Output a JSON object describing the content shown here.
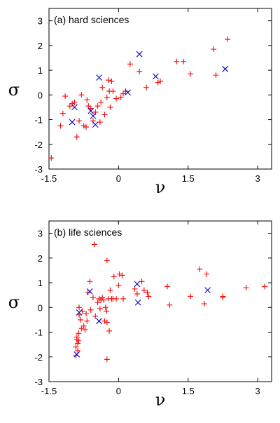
{
  "chart_data": [
    {
      "type": "scatter",
      "title": "(a) hard sciences",
      "xlabel": "ν",
      "ylabel": "σ",
      "xlim": [
        -1.5,
        3.3
      ],
      "ylim": [
        -3,
        3.5
      ],
      "xticks": [
        -1.5,
        0,
        1.5,
        3
      ],
      "xtick_labels": [
        "-1.5",
        "0",
        "1.5",
        "3"
      ],
      "yticks": [
        -3,
        -2,
        -1,
        0,
        1,
        2,
        3
      ],
      "ytick_labels": [
        "-3",
        "-2",
        "-1",
        "0",
        "1",
        "2",
        "3"
      ],
      "grid": false,
      "series": [
        {
          "marker": "plus",
          "color": "#ff0000",
          "points": [
            [
              -1.45,
              -2.55
            ],
            [
              -1.25,
              -1.25
            ],
            [
              -1.2,
              -0.75
            ],
            [
              -1.15,
              -0.05
            ],
            [
              -1.05,
              -0.45
            ],
            [
              -1.0,
              -0.35
            ],
            [
              -0.95,
              -0.3
            ],
            [
              -0.9,
              -1.7
            ],
            [
              -0.85,
              -1.05
            ],
            [
              -0.8,
              0.0
            ],
            [
              -0.75,
              -1.25
            ],
            [
              -0.7,
              -1.3
            ],
            [
              -0.68,
              -0.2
            ],
            [
              -0.65,
              -0.45
            ],
            [
              -0.6,
              -0.55
            ],
            [
              -0.55,
              -1.05
            ],
            [
              -0.5,
              -0.7
            ],
            [
              -0.45,
              -0.45
            ],
            [
              -0.4,
              -1.1
            ],
            [
              -0.38,
              -0.3
            ],
            [
              -0.35,
              0.3
            ],
            [
              -0.3,
              -0.8
            ],
            [
              -0.25,
              -0.1
            ],
            [
              -0.22,
              0.6
            ],
            [
              -0.2,
              0.15
            ],
            [
              -0.18,
              -0.5
            ],
            [
              -0.15,
              0.55
            ],
            [
              -0.12,
              0.15
            ],
            [
              -0.05,
              -0.15
            ],
            [
              0.05,
              -0.1
            ],
            [
              0.1,
              0.05
            ],
            [
              0.15,
              0.15
            ],
            [
              0.25,
              1.25
            ],
            [
              0.45,
              0.95
            ],
            [
              0.6,
              0.3
            ],
            [
              0.85,
              0.5
            ],
            [
              0.9,
              0.55
            ],
            [
              1.25,
              1.35
            ],
            [
              1.4,
              1.35
            ],
            [
              1.55,
              0.85
            ],
            [
              2.05,
              1.85
            ],
            [
              2.1,
              0.8
            ],
            [
              2.35,
              2.25
            ]
          ]
        },
        {
          "marker": "cross",
          "color": "#0000cc",
          "points": [
            [
              -1.0,
              -1.1
            ],
            [
              -0.95,
              -0.5
            ],
            [
              -0.6,
              -0.65
            ],
            [
              -0.55,
              -0.85
            ],
            [
              -0.5,
              -1.2
            ],
            [
              -0.42,
              0.7
            ],
            [
              0.2,
              0.1
            ],
            [
              0.45,
              1.65
            ],
            [
              0.8,
              0.75
            ],
            [
              2.3,
              1.05
            ]
          ]
        }
      ]
    },
    {
      "type": "scatter",
      "title": "(b) life sciences",
      "xlabel": "ν",
      "ylabel": "σ",
      "xlim": [
        -1.5,
        3.3
      ],
      "ylim": [
        -3,
        3.5
      ],
      "xticks": [
        -1.5,
        0,
        1.5,
        3
      ],
      "xtick_labels": [
        "-1.5",
        "0",
        "1.5",
        "3"
      ],
      "yticks": [
        -3,
        -2,
        -1,
        0,
        1,
        2,
        3
      ],
      "ytick_labels": [
        "-3",
        "-2",
        "-1",
        "0",
        "1",
        "2",
        "3"
      ],
      "grid": false,
      "series": [
        {
          "marker": "plus",
          "color": "#ff0000",
          "points": [
            [
              -0.92,
              -1.95
            ],
            [
              -0.92,
              -1.6
            ],
            [
              -0.9,
              -1.3
            ],
            [
              -0.9,
              -1.2
            ],
            [
              -0.88,
              -1.45
            ],
            [
              -0.88,
              -1.75
            ],
            [
              -0.86,
              -1.35
            ],
            [
              -0.86,
              -1.05
            ],
            [
              -0.85,
              -0.3
            ],
            [
              -0.85,
              0.0
            ],
            [
              -0.82,
              -0.5
            ],
            [
              -0.8,
              -0.85
            ],
            [
              -0.78,
              -0.15
            ],
            [
              -0.75,
              -0.75
            ],
            [
              -0.72,
              -0.9
            ],
            [
              -0.7,
              -0.25
            ],
            [
              -0.68,
              -0.55
            ],
            [
              -0.66,
              0.6
            ],
            [
              -0.62,
              1.05
            ],
            [
              -0.6,
              -0.1
            ],
            [
              -0.55,
              0.4
            ],
            [
              -0.52,
              2.55
            ],
            [
              -0.5,
              -0.35
            ],
            [
              -0.45,
              0.2
            ],
            [
              -0.42,
              0.35
            ],
            [
              -0.4,
              -0.05
            ],
            [
              -0.38,
              0.3
            ],
            [
              -0.35,
              0.4
            ],
            [
              -0.32,
              0.3
            ],
            [
              -0.3,
              -0.55
            ],
            [
              -0.28,
              0.0
            ],
            [
              -0.26,
              -0.15
            ],
            [
              -0.25,
              -0.6
            ],
            [
              -0.25,
              1.9
            ],
            [
              -0.22,
              0.35
            ],
            [
              -0.2,
              -0.95
            ],
            [
              -0.18,
              0.7
            ],
            [
              -0.15,
              0.35
            ],
            [
              -0.12,
              0.35
            ],
            [
              -0.1,
              1.25
            ],
            [
              -0.05,
              0.35
            ],
            [
              0.0,
              0.9
            ],
            [
              0.02,
              1.35
            ],
            [
              0.08,
              1.3
            ],
            [
              -0.25,
              -2.1
            ],
            [
              0.1,
              0.35
            ],
            [
              0.35,
              0.75
            ],
            [
              0.4,
              0.55
            ],
            [
              0.5,
              1.05
            ],
            [
              0.55,
              0.7
            ],
            [
              0.62,
              0.6
            ],
            [
              0.65,
              0.45
            ],
            [
              1.05,
              0.85
            ],
            [
              1.1,
              0.1
            ],
            [
              1.55,
              0.45
            ],
            [
              1.75,
              1.55
            ],
            [
              1.85,
              0.15
            ],
            [
              1.9,
              1.35
            ],
            [
              2.25,
              0.45
            ],
            [
              2.25,
              0.4
            ],
            [
              2.75,
              0.8
            ],
            [
              3.15,
              0.85
            ]
          ]
        },
        {
          "marker": "cross",
          "color": "#0000cc",
          "points": [
            [
              -0.9,
              -1.9
            ],
            [
              -0.85,
              -0.2
            ],
            [
              -0.62,
              0.65
            ],
            [
              -0.42,
              -0.55
            ],
            [
              0.4,
              0.95
            ],
            [
              0.42,
              0.2
            ],
            [
              1.92,
              0.7
            ]
          ]
        }
      ]
    }
  ]
}
